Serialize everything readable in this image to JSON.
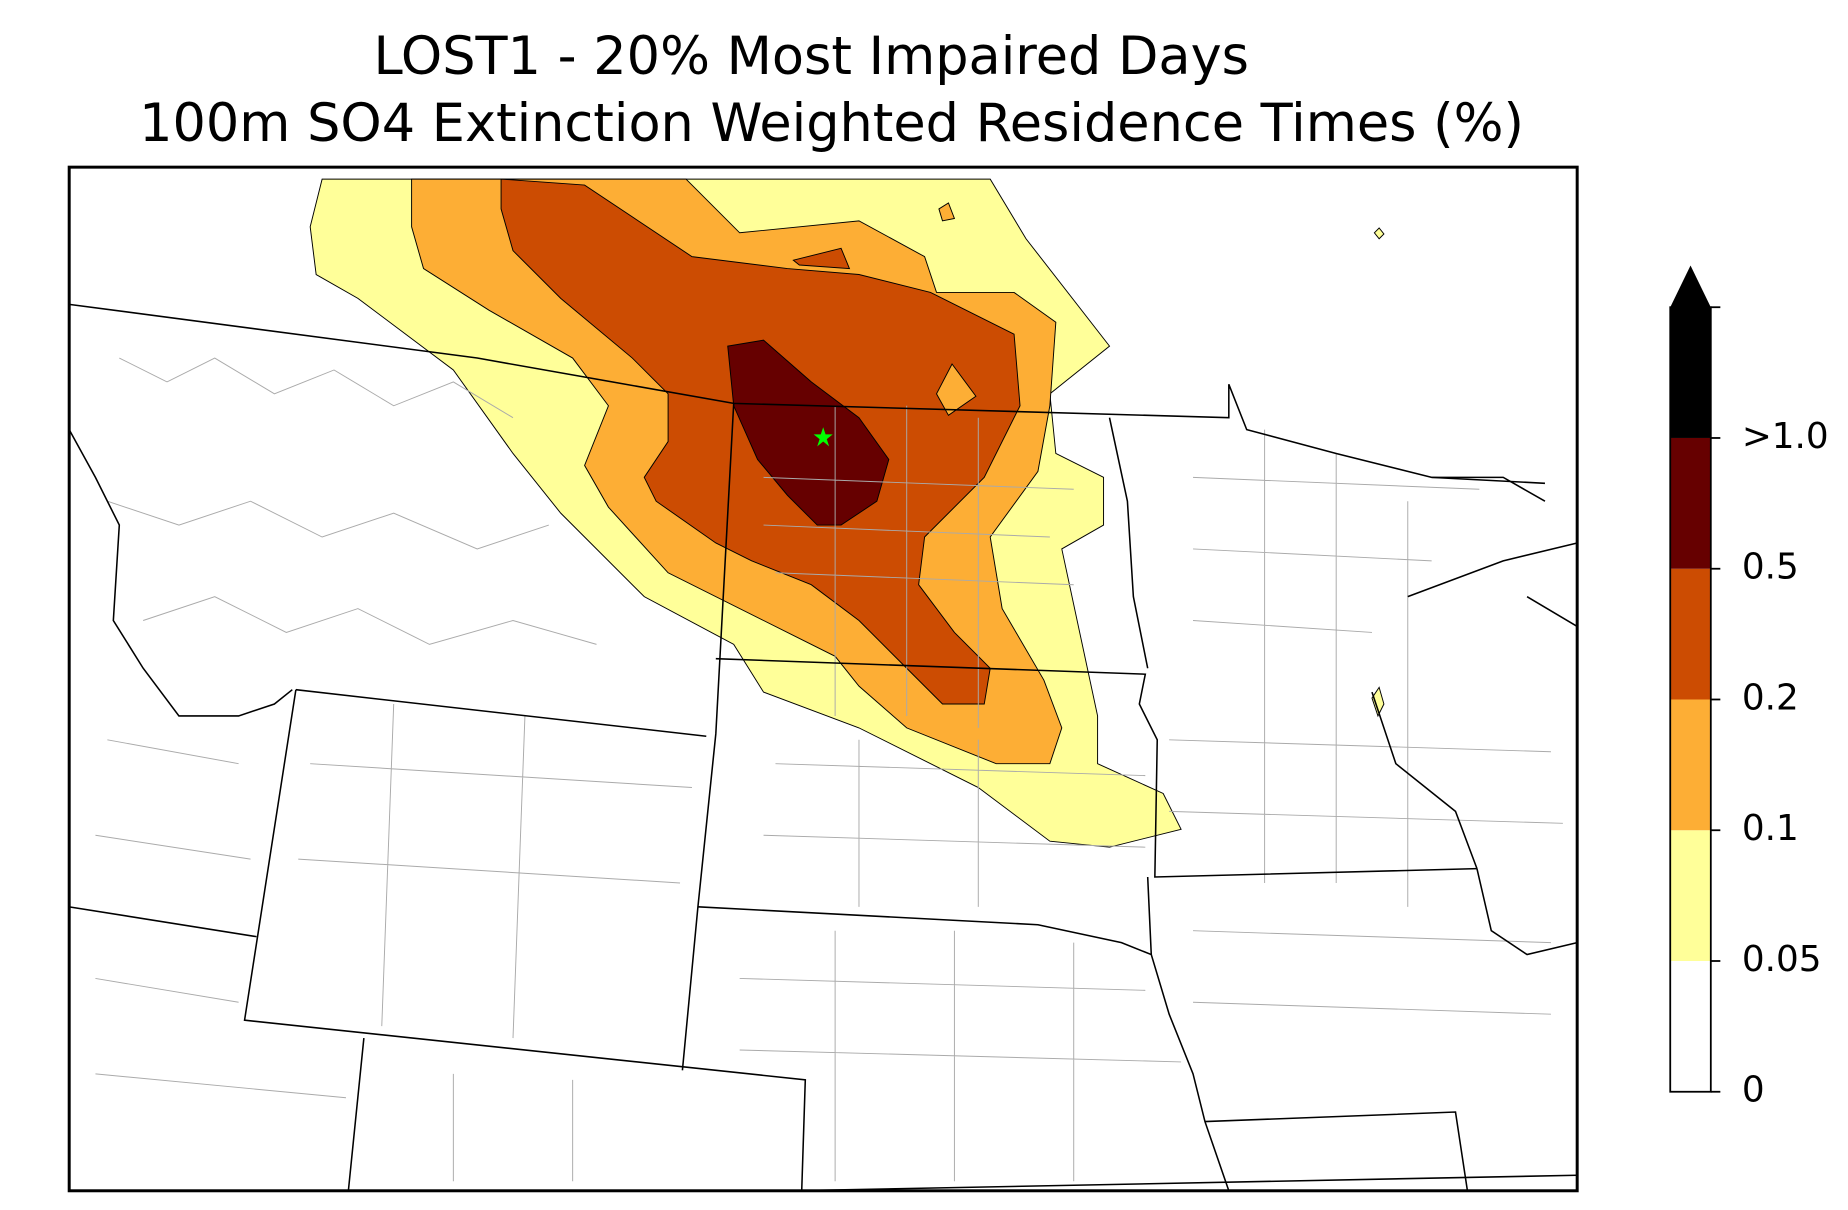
{
  "map": {
    "title": "LOST1 - 20% Most Impaired Days",
    "subtitle": "100m SO4 Extinction Weighted Residence Times (%)",
    "colorbar": {
      "ticks": [
        0,
        0.05,
        0.1,
        0.2,
        0.5,
        {
          "value": 1.0,
          "label": ">1.0"
        }
      ],
      "colors": [
        "#ffffff",
        "#ffff99",
        "#fdae35",
        "#cc4c02",
        "#660000"
      ],
      "extend_color": "#000000"
    }
  }
}
